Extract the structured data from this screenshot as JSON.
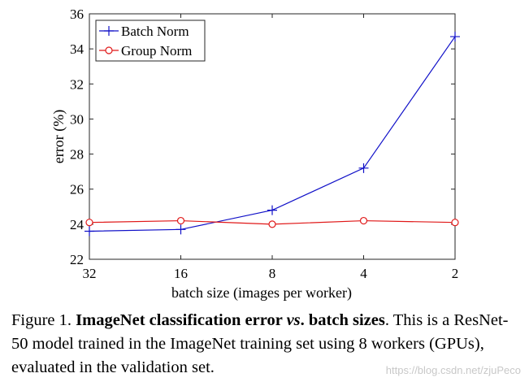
{
  "chart_data": {
    "type": "line",
    "x": [
      32,
      16,
      8,
      4,
      2
    ],
    "x_tick_labels": [
      "32",
      "16",
      "8",
      "4",
      "2"
    ],
    "x_scale": "log2-reversed",
    "xlabel": "batch size (images per worker)",
    "ylabel": "error (%)",
    "ylim": [
      22,
      36
    ],
    "y_ticks": [
      22,
      24,
      26,
      28,
      30,
      32,
      34,
      36
    ],
    "grid": false,
    "legend_position": "top-left",
    "series": [
      {
        "name": "Batch Norm",
        "color": "#1010c8",
        "marker": "plus",
        "values": [
          23.6,
          23.7,
          24.8,
          27.2,
          34.7
        ]
      },
      {
        "name": "Group Norm",
        "color": "#e01818",
        "marker": "circle",
        "values": [
          24.1,
          24.2,
          24.0,
          24.2,
          24.1
        ]
      }
    ]
  },
  "caption": {
    "figure_label": "Figure 1.",
    "bold_a": "ImageNet classification error",
    "bold_italic": "vs",
    "bold_b": ". batch sizes",
    "rest": ". This is a ResNet-50 model trained in the ImageNet training set using 8 workers (GPUs), evaluated in the validation set."
  },
  "watermark": "https://blog.csdn.net/zjuPeco"
}
